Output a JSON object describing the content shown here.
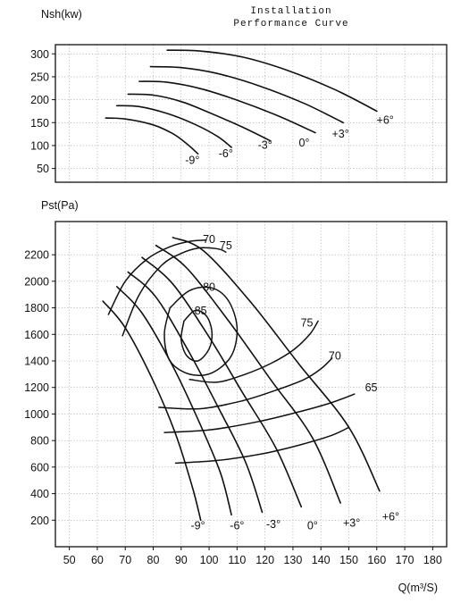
{
  "title": {
    "line1": "Installation",
    "line2": "Performance Curve"
  },
  "chart_data": [
    {
      "type": "line",
      "ylabel": "Nsh(kw)",
      "xlim": [
        45,
        185
      ],
      "ylim": [
        20,
        320
      ],
      "yticks": [
        50,
        100,
        150,
        200,
        250,
        300
      ],
      "grid": true,
      "series": [
        {
          "name": "-9°",
          "x": [
            63,
            70,
            80,
            87,
            92,
            96
          ],
          "y": [
            160,
            158,
            145,
            126,
            104,
            82
          ]
        },
        {
          "name": "-6°",
          "x": [
            67,
            75,
            85,
            95,
            103,
            108
          ],
          "y": [
            187,
            185,
            170,
            146,
            120,
            96
          ]
        },
        {
          "name": "-3°",
          "x": [
            71,
            80,
            90,
            100,
            112,
            122
          ],
          "y": [
            212,
            210,
            196,
            172,
            140,
            110
          ]
        },
        {
          "name": "0°",
          "x": [
            75,
            85,
            97,
            110,
            125,
            138
          ],
          "y": [
            240,
            238,
            224,
            199,
            164,
            128
          ]
        },
        {
          "name": "+3°",
          "x": [
            79,
            90,
            103,
            118,
            134,
            148
          ],
          "y": [
            272,
            270,
            257,
            230,
            192,
            150
          ]
        },
        {
          "name": "+6°",
          "x": [
            85,
            97,
            112,
            128,
            145,
            160
          ],
          "y": [
            308,
            306,
            293,
            264,
            222,
            175
          ]
        }
      ],
      "annotations": [
        {
          "text": "-9°",
          "x": 94,
          "y": 60
        },
        {
          "text": "-6°",
          "x": 106,
          "y": 75
        },
        {
          "text": "-3°",
          "x": 120,
          "y": 93
        },
        {
          "text": "0°",
          "x": 134,
          "y": 98
        },
        {
          "text": "+3°",
          "x": 147,
          "y": 117
        },
        {
          "text": "+6°",
          "x": 163,
          "y": 148
        }
      ]
    },
    {
      "type": "line",
      "ylabel": "Pst(Pa)",
      "xlabel": "Q(m³/S)",
      "xlim": [
        45,
        185
      ],
      "ylim": [
        0,
        2450
      ],
      "xticks": [
        50,
        60,
        70,
        80,
        90,
        100,
        110,
        120,
        130,
        140,
        150,
        160,
        170,
        180
      ],
      "yticks": [
        200,
        400,
        600,
        800,
        1000,
        1200,
        1400,
        1600,
        1800,
        2000,
        2200
      ],
      "grid": true,
      "series": [
        {
          "name": "-9°",
          "x": [
            62,
            70,
            80,
            88,
            94,
            97
          ],
          "y": [
            1850,
            1650,
            1250,
            850,
            450,
            200
          ]
        },
        {
          "name": "-6°",
          "x": [
            67,
            76,
            87,
            96,
            104,
            108
          ],
          "y": [
            1960,
            1760,
            1360,
            960,
            560,
            240
          ]
        },
        {
          "name": "-3°",
          "x": [
            71,
            81,
            93,
            103,
            113,
            119
          ],
          "y": [
            2070,
            1880,
            1460,
            1060,
            640,
            260
          ]
        },
        {
          "name": "0°",
          "x": [
            76,
            87,
            100,
            112,
            124,
            133
          ],
          "y": [
            2180,
            1980,
            1580,
            1160,
            740,
            300
          ]
        },
        {
          "name": "+3°",
          "x": [
            81,
            92,
            107,
            122,
            137,
            147
          ],
          "y": [
            2270,
            2100,
            1700,
            1260,
            820,
            330
          ]
        },
        {
          "name": "+6°",
          "x": [
            87,
            98,
            115,
            132,
            150,
            161
          ],
          "y": [
            2330,
            2230,
            1840,
            1380,
            900,
            420
          ]
        }
      ],
      "efficiency_contours": [
        {
          "label": "85",
          "x": [
            91,
            95,
            99,
            101,
            100,
            96,
            92,
            90,
            91
          ],
          "y": [
            1700,
            1780,
            1740,
            1620,
            1490,
            1400,
            1440,
            1560,
            1700
          ]
        },
        {
          "label": "80",
          "x": [
            86,
            93,
            101,
            107,
            110,
            108,
            101,
            93,
            86,
            84,
            86
          ],
          "y": [
            1800,
            1930,
            1950,
            1850,
            1650,
            1440,
            1310,
            1300,
            1400,
            1600,
            1800
          ]
        },
        {
          "label": "75",
          "x": [
            69,
            75,
            83,
            90,
            96,
            101,
            104,
            106
          ],
          "y": [
            1590,
            1900,
            2120,
            2210,
            2250,
            2250,
            2240,
            2220
          ]
        },
        {
          "label": "75",
          "x": [
            93,
            103,
            113,
            122,
            130,
            136,
            139
          ],
          "y": [
            1260,
            1240,
            1300,
            1380,
            1480,
            1600,
            1700
          ]
        },
        {
          "label": "70",
          "x": [
            64,
            70,
            78,
            86,
            93,
            99
          ],
          "y": [
            1750,
            2000,
            2170,
            2260,
            2300,
            2310
          ]
        },
        {
          "label": "70",
          "x": [
            82,
            97,
            112,
            124,
            134,
            140,
            144
          ],
          "y": [
            1050,
            1040,
            1100,
            1180,
            1260,
            1340,
            1420
          ]
        },
        {
          "label": "65",
          "x": [
            84,
            100,
            117,
            131,
            143,
            152
          ],
          "y": [
            860,
            880,
            940,
            1010,
            1080,
            1150
          ]
        },
        {
          "label": "65",
          "x": [
            88,
            103,
            119,
            133,
            144,
            150
          ],
          "y": [
            630,
            650,
            700,
            770,
            840,
            900
          ]
        }
      ],
      "annotations": [
        {
          "text": "70",
          "x": 100,
          "y": 2290
        },
        {
          "text": "75",
          "x": 106,
          "y": 2240
        },
        {
          "text": "80",
          "x": 100,
          "y": 1930
        },
        {
          "text": "85",
          "x": 97,
          "y": 1750
        },
        {
          "text": "75",
          "x": 135,
          "y": 1660
        },
        {
          "text": "70",
          "x": 145,
          "y": 1410
        },
        {
          "text": "65",
          "x": 158,
          "y": 1170
        },
        {
          "text": "-9°",
          "x": 96,
          "y": 130
        },
        {
          "text": "-6°",
          "x": 110,
          "y": 130
        },
        {
          "text": "-3°",
          "x": 123,
          "y": 140
        },
        {
          "text": "0°",
          "x": 137,
          "y": 130
        },
        {
          "text": "+3°",
          "x": 151,
          "y": 150
        },
        {
          "text": "+6°",
          "x": 165,
          "y": 200
        }
      ]
    }
  ]
}
